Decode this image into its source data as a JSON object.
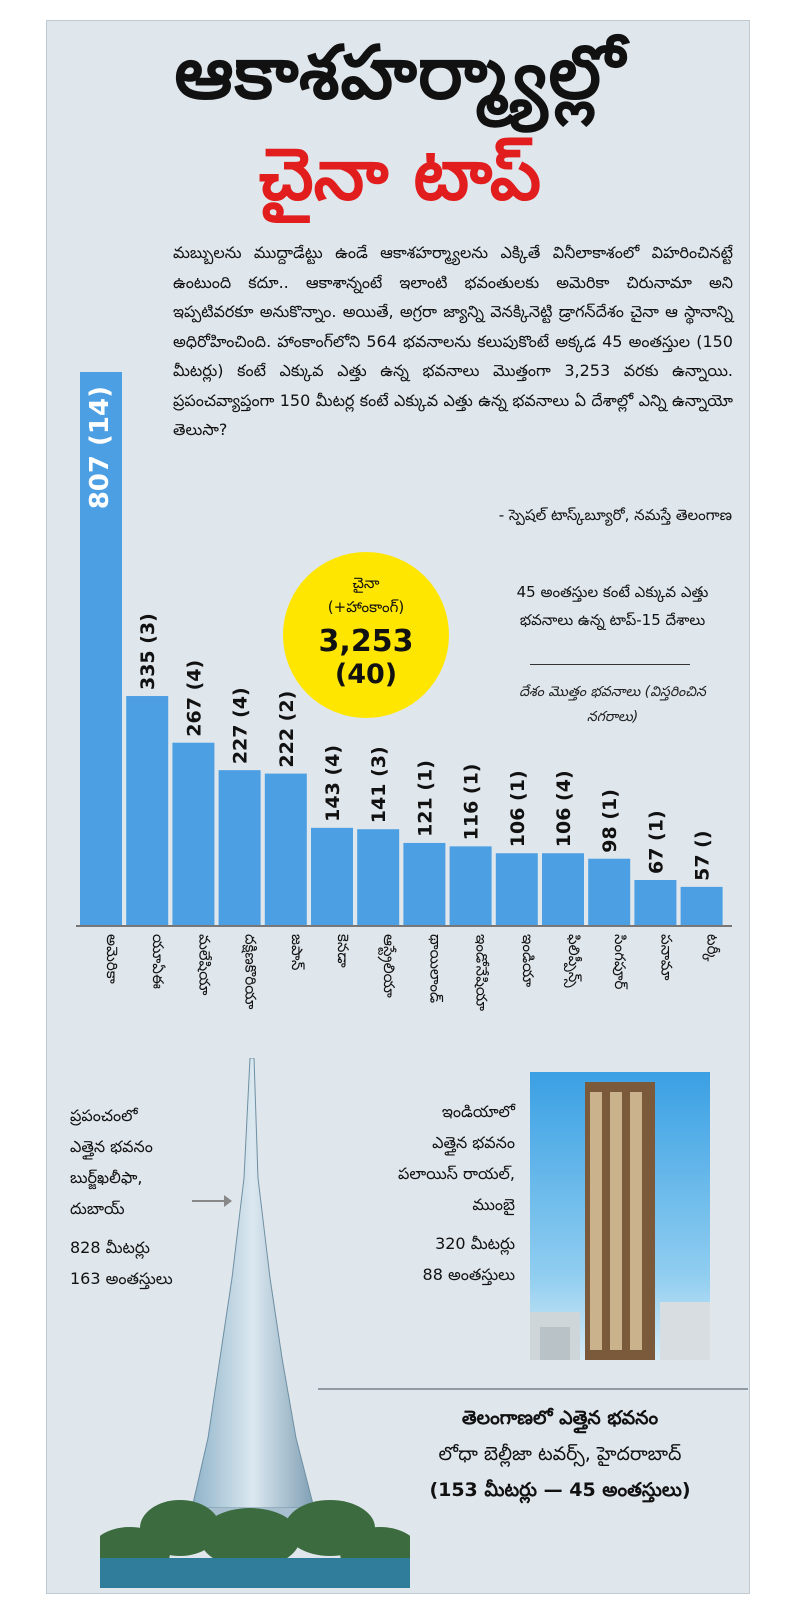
{
  "header": {
    "title": "ఆకాశహర్మ్యాల్లో",
    "subtitle": "చైనా టాప్"
  },
  "intro": {
    "text": "మబ్బులను ముద్దాడేట్టు ఉండే ఆకాశహర్మ్యాలను ఎక్కితే వినీలాకాశంలో విహరించినట్టే ఉంటుంది కదూ.. ఆకాశాన్నంటే ఇలాంటి భవంతులకు అమెరికా చిరునామా అని ఇప్పటివరకూ అనుకొన్నాం. అయితే, అగ్రరా జ్యాన్ని వెనక్కినెట్టి డ్రాగన్‌దేశం చైనా ఆ స్థానాన్ని అధిరోహించింది. హాంకాంగ్‌లోని 564 భవనాలను కలుపుకొంటే అక్కడ 45 అంతస్తుల (150 మీటర్లు) కంటే ఎక్కువ ఎత్తు ఉన్న భవనాలు మొత్తంగా 3,253 వరకు ఉన్నాయి. ప్రపంచవ్యాప్తంగా 150 మీటర్ల కంటే ఎక్కువ ఎత్తు ఉన్న భవనాలు ఏ దేశాల్లో ఎన్ని ఉన్నాయో తెలుసా?",
    "credit": "- స్పెషల్ టాస్క్‌బ్యూరో, నమస్తే తెలంగాణ"
  },
  "china_bubble": {
    "country": "చైనా",
    "sub": "(+హాంకాంగ్)",
    "value": "3,253",
    "cities": "(40)"
  },
  "legend": {
    "title": "45 అంతస్తుల కంటే ఎక్కువ ఎత్తు భవనాలు ఉన్న టాప్-15 దేశాలు",
    "note": "దేశం మొత్తం భవనాలు (విస్తరించిన నగరాలు)"
  },
  "chart_data": {
    "type": "bar",
    "categories": [
      "అమెరికా",
      "యూఏఈ",
      "మలేషియా",
      "దక్షిణకొరియా",
      "జపాన్",
      "కెనడా",
      "ఆస్ట్రేలియా",
      "థాయిలాండ్",
      "ఇండోనేషియా",
      "ఇండియా",
      "ఫిలిప్పీన్స్",
      "సింగపూర్",
      "పనామా",
      "టర్కీ"
    ],
    "values": [
      807,
      335,
      267,
      227,
      222,
      143,
      141,
      121,
      116,
      106,
      106,
      98,
      67,
      57
    ],
    "value_labels": [
      "807 (14)",
      "335 (3)",
      "267 (4)",
      "227 (4)",
      "222 (2)",
      "143 (4)",
      "141 (3)",
      "121 (1)",
      "116 (1)",
      "106 (1)",
      "106 (4)",
      "98 (1)",
      "67 (1)",
      "57 ()"
    ],
    "bar_color": "#4c9fe3",
    "grid": false
  },
  "world_tower": {
    "lines": [
      "ప్రపంచంలో",
      "ఎత్తైన భవనం",
      "బుర్జ్‌ఖలీఫా,",
      "దుబాయ్"
    ],
    "height": "828 మీటర్లు",
    "floors": "163 అంతస్తులు"
  },
  "india_tower": {
    "lines": [
      "ఇండియాలో",
      "ఎత్తైన భవనం",
      "పలాయిస్ రాయల్,",
      "ముంబై"
    ],
    "height": "320 మీటర్లు",
    "floors": "88 అంతస్తులు"
  },
  "telangana": {
    "line1": "తెలంగాణలో ఎత్తైన భవనం",
    "line2": "లోధా బెల్లీజా టవర్స్, హైదరాబాద్",
    "line3": "(153 మీటర్లు — 45 అంతస్తులు)"
  }
}
